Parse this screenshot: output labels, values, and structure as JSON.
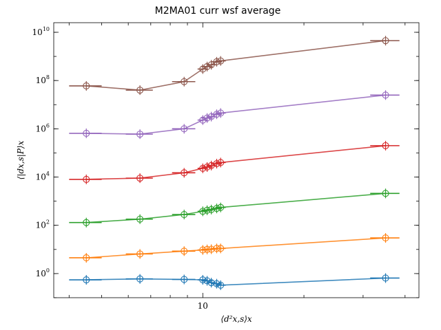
{
  "chart_data": {
    "type": "line",
    "title": "M2MA01 curr wsf average",
    "xlabel": "⟨d²x,s⟩x",
    "ylabel": "⟨|dx,s|P⟩x",
    "xscale": "log",
    "yscale": "log",
    "xlim": [
      3.6,
      44
    ],
    "ylim": [
      0.1,
      25000000000
    ],
    "grid": false,
    "x_ticks": [
      {
        "value": 10,
        "label": "10"
      }
    ],
    "y_ticks": [
      {
        "value": 1,
        "base": "10",
        "exp": "0"
      },
      {
        "value": 100,
        "base": "10",
        "exp": "2"
      },
      {
        "value": 10000,
        "base": "10",
        "exp": "4"
      },
      {
        "value": 1000000,
        "base": "10",
        "exp": "6"
      },
      {
        "value": 100000000,
        "base": "10",
        "exp": "8"
      },
      {
        "value": 10000000000,
        "base": "10",
        "exp": "10"
      }
    ],
    "x": [
      4.5,
      6.5,
      8.8,
      10.0,
      10.3,
      10.6,
      11.0,
      11.3,
      35.0
    ],
    "x_err": [
      0.5,
      0.6,
      0.7,
      0.35,
      0.4,
      0.35,
      0.4,
      0.4,
      3.5
    ],
    "series": [
      {
        "color": "#1f77b4",
        "values": [
          0.55,
          0.6,
          0.57,
          0.55,
          0.5,
          0.42,
          0.38,
          0.33,
          0.65
        ]
      },
      {
        "color": "#ff7f0e",
        "values": [
          4.5,
          6.5,
          8.5,
          9.5,
          10.0,
          10.2,
          11.0,
          11.0,
          30.0
        ]
      },
      {
        "color": "#2ca02c",
        "values": [
          130,
          180,
          280,
          380,
          420,
          450,
          500,
          550,
          2100
        ]
      },
      {
        "color": "#d62728",
        "values": [
          8000,
          9000,
          15000,
          23000,
          26000,
          30000,
          36000,
          40000,
          200000
        ]
      },
      {
        "color": "#9467bd",
        "values": [
          650000,
          600000,
          1000000,
          2300000,
          2800000,
          3200000,
          4000000,
          4500000,
          25000000
        ]
      },
      {
        "color": "#8c564b",
        "values": [
          60000000,
          40000000,
          90000000,
          300000000,
          380000000,
          450000000,
          600000000,
          650000000,
          4500000000
        ]
      }
    ]
  }
}
